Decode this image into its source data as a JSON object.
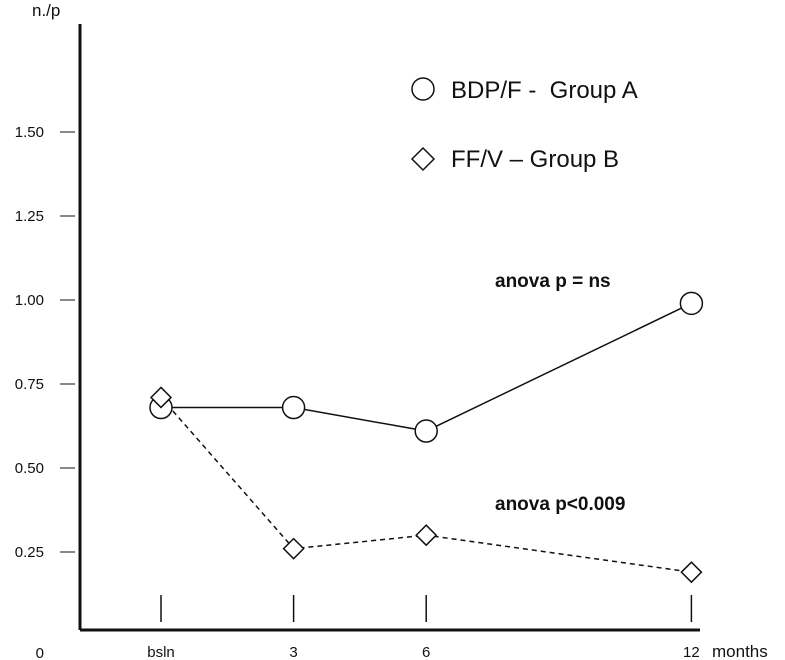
{
  "chart_data": {
    "type": "line",
    "y_unit": "n./p",
    "x_unit": "months",
    "categories": [
      "bsln",
      "3",
      "6",
      "12"
    ],
    "x_values": [
      0,
      3,
      6,
      12
    ],
    "yticks": [
      "0",
      "0.25",
      "0.50",
      "0.75",
      "1.00",
      "1.25",
      "1.50"
    ],
    "ytick_values": [
      0,
      0.25,
      0.5,
      0.75,
      1.0,
      1.25,
      1.5
    ],
    "ylim": [
      0,
      1.75
    ],
    "grid": false,
    "legend_placement": "top-right",
    "series": [
      {
        "name": "BDP/F -  Group A",
        "marker": "circle",
        "line": "solid",
        "values": [
          0.68,
          0.68,
          0.61,
          0.99
        ]
      },
      {
        "name": "FF/V – Group B",
        "marker": "diamond",
        "line": "dashed",
        "values": [
          0.71,
          0.26,
          0.3,
          0.19
        ]
      }
    ],
    "annotations": [
      "anova p = ns",
      "anova p<0.009"
    ]
  }
}
